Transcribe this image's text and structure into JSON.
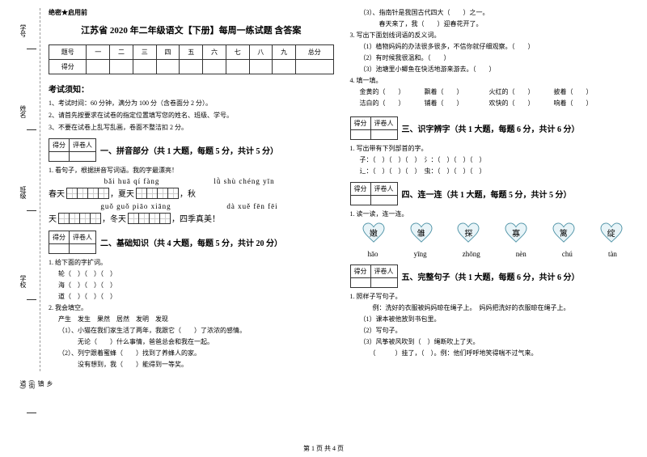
{
  "secret": "绝密★启用前",
  "title": "江苏省 2020 年二年级语文【下册】每周一练试题 含答案",
  "margin": {
    "l1": "学号",
    "l2": "姓名",
    "l3": "班级",
    "l4": "学校",
    "l5": "乡镇(街道)"
  },
  "scoreTable": {
    "headers": [
      "题号",
      "一",
      "二",
      "三",
      "四",
      "五",
      "六",
      "七",
      "八",
      "九",
      "总分"
    ],
    "row": "得分"
  },
  "notes": {
    "title": "考试须知：",
    "items": [
      "1、考试时间：60 分钟，满分为 100 分（含卷面分 2 分）。",
      "2、请首先按要求在试卷的指定位置填写您的姓名、班级、学号。",
      "3、不要在试卷上乱写乱画，卷面不整洁扣 2 分。"
    ]
  },
  "scorer": {
    "c1": "得分",
    "c2": "评卷人"
  },
  "s1": {
    "title": "一、拼音部分（共 1 大题，每题 5 分，共计 5 分）",
    "q": "1. 看句子，根据拼音写词语。我的字最漂亮！",
    "p1": "bǎi huā qí fàng",
    "p2": "lǜ shù chéng yīn",
    "p3": "guǒ guǒ piāo xiāng",
    "p4": "dà xuě fēn fēi",
    "t1a": "春天",
    "t1b": "，夏天",
    "t1c": "，秋",
    "t2a": "天",
    "t2b": "，冬天",
    "t2c": "，四季真美！"
  },
  "s2": {
    "title": "二、基础知识（共 4 大题，每题 5 分，共计 20 分）",
    "q1": "1. 给下面的字扩词。",
    "words": [
      "轮（　）（　）（　）",
      "海（　）（　）（　）",
      "道（　）（　）（　）"
    ],
    "q2": "2. 我会填空。",
    "bank": "产生　发生　果然　居然　发明　发现",
    "i1": "（1）、小猫在我们家生活了两年，我跟它（　　）了浓浓的感情。",
    "i2": "　　　无论（　　）什么事情，爸爸总会和我在一起。",
    "i3": "（2）、列宁跟着蜜蜂（　　）找到了养蜂人的家。",
    "i4": "　　　没有想到，我（　　）能得到一等奖。",
    "i5": "（3）、指南针是我国古代四大（　　）之一。",
    "i6": "　　　春天来了，我（　　）迎春花开了。",
    "q3": "3. 写出下面划线词语的反义词。",
    "r1": "（1）植物妈妈的办法很多很多，不信你就仔细观察。（　　）",
    "r2": "（2）有时候我很温和。（　　）",
    "r3": "（3）池塘里小鲫鱼在快活地游来游去。（　　）",
    "q4": "4. 填一填。",
    "pairs": [
      [
        "金黄的（　　）",
        "飘着（　　）"
      ],
      [
        "火红的（　　）",
        "披着（　　）"
      ],
      [
        "洁白的（　　）",
        "铺着（　　）"
      ],
      [
        "欢快的（　　）",
        "响着（　　）"
      ]
    ]
  },
  "s3": {
    "title": "三、识字辨字（共 1 大题，每题 6 分，共计 6 分）",
    "q": "1. 写出带有下列部首的字。",
    "rows": [
      "子：（　）（　）（　）　氵：（　）（　）（　）",
      "辶：（　）（　）（　）　虫：（　）（　）（　）"
    ]
  },
  "s4": {
    "title": "四、连一连（共 1 大题，每题 5 分，共计 5 分）",
    "q": "1. 读一读，连一连。",
    "hearts": [
      "嫩",
      "雏",
      "探",
      "寡",
      "篱",
      "绽"
    ],
    "pinyins": [
      "hāo",
      "yīng",
      "zhōng",
      "nèn",
      "chú",
      "tàn"
    ]
  },
  "s5": {
    "title": "五、完整句子（共 1 大题，每题 6 分，共计 6 分）",
    "q": "1. 照样子写句子。",
    "i1": "　　例：洗好的衣服被妈妈晾在绳子上。　妈妈把洗好的衣服晾在绳子上。",
    "i2": "（1）课本被他放到书包里。",
    "i3": "（2）写句子。",
    "i4": "（3）风筝被风吹到（　）绳断吹上了天。",
    "i5": "　　（　　　）挂了，（　）。例：他们呼呼地笑得喘不过气来。"
  },
  "footer": "第 1 页 共 4 页"
}
